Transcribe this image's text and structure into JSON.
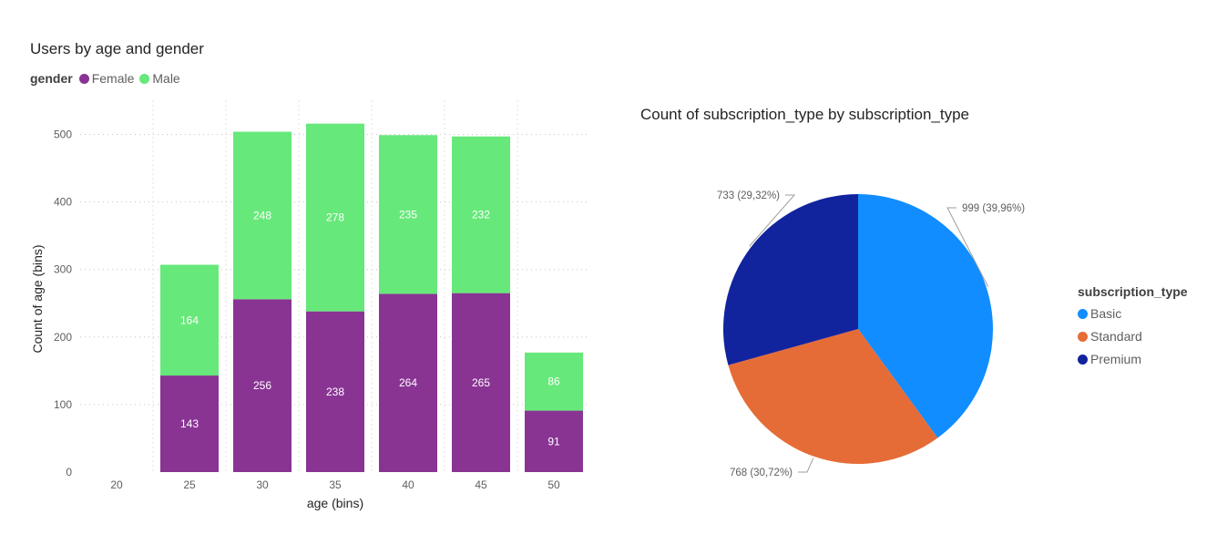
{
  "chart_data": [
    {
      "type": "bar",
      "stacked": true,
      "title": "Users by age and gender",
      "legend_title": "gender",
      "legend_position": "top-left",
      "xlabel": "age (bins)",
      "ylabel": "Count of age (bins)",
      "categories": [
        "20",
        "25",
        "30",
        "35",
        "40",
        "45",
        "50"
      ],
      "series": [
        {
          "name": "Female",
          "color": "#893493",
          "values": [
            0,
            143,
            256,
            238,
            264,
            265,
            91
          ]
        },
        {
          "name": "Male",
          "color": "#67E87A",
          "values": [
            0,
            164,
            248,
            278,
            235,
            232,
            86
          ]
        }
      ],
      "yticks": [
        0,
        100,
        200,
        300,
        400,
        500
      ],
      "ylim": [
        0,
        550
      ],
      "grid": true
    },
    {
      "type": "pie",
      "title": "Count of subscription_type by subscription_type",
      "legend_title": "subscription_type",
      "legend_position": "right",
      "slices": [
        {
          "name": "Basic",
          "value": 999,
          "label": "999 (39,96%)",
          "color": "#118DFF"
        },
        {
          "name": "Standard",
          "value": 768,
          "label": "768 (30,72%)",
          "color": "#E66C37"
        },
        {
          "name": "Premium",
          "value": 733,
          "label": "733 (29,32%)",
          "color": "#12239E"
        }
      ]
    }
  ]
}
